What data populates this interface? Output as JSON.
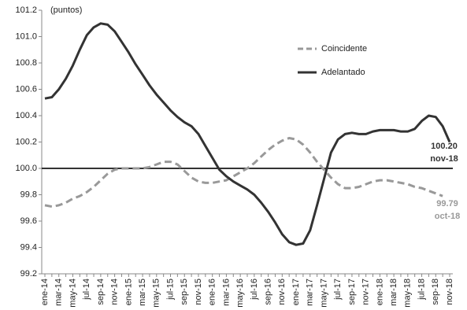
{
  "chart_data": {
    "type": "line",
    "y_label": "(puntos)",
    "categories": [
      "ene-14",
      null,
      "mar-14",
      null,
      "may-14",
      null,
      "jul-14",
      null,
      "sep-14",
      null,
      "nov-14",
      null,
      "ene-15",
      null,
      "mar-15",
      null,
      "may-15",
      null,
      "jul-15",
      null,
      "sep-15",
      null,
      "nov-15",
      null,
      "ene-16",
      null,
      "mar-16",
      null,
      "may-16",
      null,
      "jul-16",
      null,
      "sep-16",
      null,
      "nov-16",
      null,
      "ene-17",
      null,
      "mar-17",
      null,
      "may-17",
      null,
      "jul-17",
      null,
      "sep-17",
      null,
      "nov-17",
      null,
      "ene-18",
      null,
      "mar-18",
      null,
      "may-18",
      null,
      "jul-18",
      null,
      "sep-18",
      null,
      "nov-18"
    ],
    "series": [
      {
        "name": "Coincidente",
        "color": "#999999",
        "dashed": true,
        "values": [
          99.72,
          99.71,
          99.72,
          99.74,
          99.77,
          99.79,
          99.82,
          99.86,
          99.91,
          99.96,
          99.99,
          100.0,
          100.0,
          100.0,
          100.0,
          100.01,
          100.03,
          100.05,
          100.05,
          100.03,
          99.98,
          99.93,
          99.9,
          99.89,
          99.89,
          99.9,
          99.91,
          99.94,
          99.97,
          100.0,
          100.04,
          100.09,
          100.14,
          100.18,
          100.21,
          100.23,
          100.22,
          100.18,
          100.12,
          100.05,
          99.99,
          99.93,
          99.88,
          99.85,
          99.85,
          99.86,
          99.88,
          99.9,
          99.91,
          99.91,
          99.9,
          99.89,
          99.88,
          99.86,
          99.85,
          99.83,
          99.81,
          99.79,
          null
        ]
      },
      {
        "name": "Adelantado",
        "color": "#333333",
        "dashed": false,
        "values": [
          100.53,
          100.54,
          100.6,
          100.68,
          100.78,
          100.9,
          101.01,
          101.07,
          101.1,
          101.09,
          101.04,
          100.96,
          100.88,
          100.79,
          100.71,
          100.63,
          100.56,
          100.5,
          100.44,
          100.39,
          100.35,
          100.32,
          100.26,
          100.17,
          100.08,
          99.99,
          99.94,
          99.9,
          99.87,
          99.84,
          99.8,
          99.74,
          99.67,
          99.59,
          99.5,
          99.44,
          99.42,
          99.43,
          99.53,
          99.72,
          99.92,
          100.12,
          100.22,
          100.26,
          100.27,
          100.26,
          100.26,
          100.28,
          100.29,
          100.29,
          100.29,
          100.28,
          100.28,
          100.3,
          100.36,
          100.4,
          100.39,
          100.32,
          100.2
        ]
      }
    ],
    "reference_line": 100,
    "ylim": [
      99.2,
      101.2
    ],
    "yticks": [
      99.2,
      99.4,
      99.6,
      99.8,
      {
        "value": 100,
        "label": "100.0"
      },
      100.2,
      100.4,
      100.6,
      100.8,
      {
        "value": 101,
        "label": "101.0"
      },
      101.2
    ],
    "annotations": [
      {
        "text": "100.20",
        "color": "#333333"
      },
      {
        "text": "nov-18",
        "color": "#333333"
      },
      {
        "text": "99.79",
        "color": "#999999"
      },
      {
        "text": "oct-18",
        "color": "#999999"
      }
    ]
  }
}
